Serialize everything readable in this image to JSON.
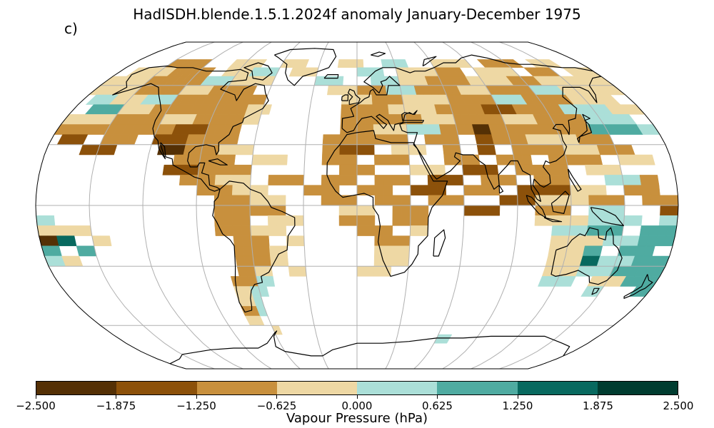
{
  "map": {
    "title": "HadISDH.blende.1.5.1.2024f anomaly January-December 1975",
    "panel_label": "c)",
    "projection": "Robinson",
    "basemap": "coastlines with 30-degree graticule",
    "missing_data_color": "#ffffff"
  },
  "colorbar": {
    "label": "Vapour Pressure (hPa)",
    "ticks": [
      "−2.500",
      "−1.875",
      "−1.250",
      "−0.625",
      "0.000",
      "0.625",
      "1.250",
      "1.875",
      "2.500"
    ],
    "range": [
      -2.5,
      2.5
    ],
    "colors": [
      "#543005",
      "#8c510a",
      "#c8903d",
      "#eed8a4",
      "#abdfd8",
      "#4faba1",
      "#08695f",
      "#003c30"
    ]
  },
  "field": {
    "rows_description": "Gridded 5-degree anomaly values, rows from north to south, each listing [start_longitude, end_longitude, class_index] runs (0=darkest brown ... 7=darkest teal).",
    "rows": [
      {
        "lat": 75,
        "runs": [
          [
            -150,
            -120,
            2
          ],
          [
            -100,
            -75,
            3
          ],
          [
            -60,
            -40,
            3
          ],
          [
            -15,
            5,
            3
          ],
          [
            20,
            40,
            4
          ],
          [
            60,
            90,
            3
          ],
          [
            100,
            130,
            2
          ],
          [
            140,
            160,
            3
          ]
        ]
      },
      {
        "lat": 70,
        "runs": [
          [
            -170,
            -140,
            3
          ],
          [
            -140,
            -110,
            2
          ],
          [
            -100,
            -80,
            3
          ],
          [
            -80,
            -60,
            4
          ],
          [
            -50,
            -30,
            3
          ],
          [
            0,
            20,
            4
          ],
          [
            30,
            60,
            3
          ],
          [
            60,
            80,
            2
          ],
          [
            90,
            120,
            3
          ],
          [
            130,
            150,
            2
          ],
          [
            160,
            180,
            3
          ]
        ]
      },
      {
        "lat": 65,
        "runs": [
          [
            -180,
            -150,
            3
          ],
          [
            -150,
            -110,
            2
          ],
          [
            -110,
            -90,
            4
          ],
          [
            -90,
            -60,
            3
          ],
          [
            -30,
            -10,
            4
          ],
          [
            10,
            30,
            4
          ],
          [
            30,
            50,
            3
          ],
          [
            50,
            80,
            2
          ],
          [
            80,
            110,
            3
          ],
          [
            110,
            130,
            2
          ],
          [
            130,
            160,
            3
          ],
          [
            160,
            180,
            3
          ]
        ]
      },
      {
        "lat": 60,
        "runs": [
          [
            -180,
            -150,
            3
          ],
          [
            -150,
            -120,
            2
          ],
          [
            -120,
            -100,
            3
          ],
          [
            -100,
            -70,
            2
          ],
          [
            -20,
            0,
            3
          ],
          [
            0,
            20,
            2
          ],
          [
            20,
            40,
            4
          ],
          [
            40,
            70,
            2
          ],
          [
            70,
            90,
            3
          ],
          [
            90,
            120,
            2
          ],
          [
            120,
            140,
            4
          ],
          [
            140,
            180,
            3
          ]
        ]
      },
      {
        "lat": 55,
        "runs": [
          [
            -175,
            -160,
            4
          ],
          [
            -160,
            -140,
            3
          ],
          [
            -140,
            -120,
            4
          ],
          [
            -120,
            -90,
            2
          ],
          [
            -90,
            -60,
            2
          ],
          [
            -10,
            10,
            3
          ],
          [
            10,
            30,
            2
          ],
          [
            30,
            60,
            3
          ],
          [
            60,
            90,
            2
          ],
          [
            90,
            110,
            4
          ],
          [
            110,
            140,
            2
          ],
          [
            140,
            170,
            3
          ]
        ]
      },
      {
        "lat": 50,
        "runs": [
          [
            -170,
            -150,
            5
          ],
          [
            -150,
            -130,
            3
          ],
          [
            -130,
            -100,
            2
          ],
          [
            -100,
            -70,
            2
          ],
          [
            -70,
            -55,
            3
          ],
          [
            -10,
            20,
            2
          ],
          [
            20,
            50,
            3
          ],
          [
            50,
            80,
            2
          ],
          [
            80,
            100,
            1
          ],
          [
            100,
            130,
            2
          ],
          [
            130,
            160,
            4
          ],
          [
            160,
            180,
            3
          ]
        ]
      },
      {
        "lat": 45,
        "runs": [
          [
            -180,
            -150,
            3
          ],
          [
            -150,
            -120,
            2
          ],
          [
            -120,
            -100,
            3
          ],
          [
            -100,
            -70,
            2
          ],
          [
            -70,
            -60,
            3
          ],
          [
            -10,
            10,
            2
          ],
          [
            10,
            40,
            2
          ],
          [
            40,
            60,
            3
          ],
          [
            60,
            90,
            2
          ],
          [
            90,
            110,
            3
          ],
          [
            110,
            140,
            2
          ],
          [
            140,
            170,
            4
          ]
        ]
      },
      {
        "lat": 40,
        "runs": [
          [
            -180,
            -160,
            2
          ],
          [
            -160,
            -130,
            2
          ],
          [
            -130,
            -110,
            2
          ],
          [
            -110,
            -90,
            1
          ],
          [
            -90,
            -70,
            2
          ],
          [
            -10,
            10,
            2
          ],
          [
            10,
            30,
            3
          ],
          [
            30,
            50,
            4
          ],
          [
            50,
            70,
            2
          ],
          [
            70,
            80,
            0
          ],
          [
            80,
            100,
            2
          ],
          [
            100,
            140,
            2
          ],
          [
            140,
            170,
            5
          ],
          [
            170,
            180,
            4
          ]
        ]
      },
      {
        "lat": 35,
        "runs": [
          [
            -175,
            -160,
            1
          ],
          [
            -150,
            -130,
            2
          ],
          [
            -120,
            -100,
            1
          ],
          [
            -100,
            -70,
            2
          ],
          [
            -20,
            0,
            2
          ],
          [
            0,
            30,
            2
          ],
          [
            40,
            60,
            2
          ],
          [
            70,
            80,
            1
          ],
          [
            80,
            100,
            2
          ],
          [
            100,
            130,
            3
          ],
          [
            130,
            150,
            2
          ]
        ]
      },
      {
        "lat": 30,
        "runs": [
          [
            -160,
            -140,
            1
          ],
          [
            -115,
            -100,
            0
          ],
          [
            -100,
            -80,
            2
          ],
          [
            -80,
            -60,
            3
          ],
          [
            -20,
            -10,
            2
          ],
          [
            -10,
            10,
            1
          ],
          [
            20,
            40,
            3
          ],
          [
            50,
            60,
            2
          ],
          [
            70,
            80,
            1
          ],
          [
            90,
            120,
            2
          ],
          [
            120,
            140,
            3
          ],
          [
            140,
            160,
            2
          ]
        ]
      },
      {
        "lat": 25,
        "runs": [
          [
            -105,
            -90,
            2
          ],
          [
            -90,
            -70,
            2
          ],
          [
            -60,
            -40,
            3
          ],
          [
            -20,
            0,
            2
          ],
          [
            10,
            30,
            2
          ],
          [
            50,
            70,
            2
          ],
          [
            80,
            100,
            2
          ],
          [
            110,
            140,
            2
          ],
          [
            150,
            170,
            3
          ]
        ]
      },
      {
        "lat": 20,
        "runs": [
          [
            -110,
            -90,
            1
          ],
          [
            -90,
            -60,
            2
          ],
          [
            -10,
            10,
            2
          ],
          [
            30,
            50,
            3
          ],
          [
            60,
            80,
            1
          ],
          [
            90,
            120,
            2
          ],
          [
            130,
            150,
            3
          ]
        ]
      },
      {
        "lat": 15,
        "runs": [
          [
            -100,
            -80,
            2
          ],
          [
            -80,
            -60,
            3
          ],
          [
            -50,
            -30,
            2
          ],
          [
            -20,
            0,
            2
          ],
          [
            10,
            30,
            2
          ],
          [
            40,
            60,
            1
          ],
          [
            70,
            90,
            2
          ],
          [
            100,
            120,
            2
          ],
          [
            140,
            160,
            4
          ],
          [
            160,
            170,
            2
          ]
        ]
      },
      {
        "lat": 10,
        "runs": [
          [
            -90,
            -70,
            2
          ],
          [
            -70,
            -50,
            3
          ],
          [
            -30,
            -10,
            2
          ],
          [
            0,
            20,
            2
          ],
          [
            30,
            50,
            1
          ],
          [
            60,
            80,
            2
          ],
          [
            90,
            120,
            1
          ],
          [
            120,
            140,
            3
          ],
          [
            150,
            170,
            2
          ]
        ]
      },
      {
        "lat": 5,
        "runs": [
          [
            -80,
            -60,
            2
          ],
          [
            -60,
            -40,
            3
          ],
          [
            -20,
            0,
            2
          ],
          [
            10,
            30,
            2
          ],
          [
            40,
            60,
            2
          ],
          [
            80,
            100,
            1
          ],
          [
            100,
            130,
            3
          ],
          [
            130,
            150,
            2
          ],
          [
            160,
            180,
            2
          ]
        ]
      },
      {
        "lat": 0,
        "runs": [
          [
            -80,
            -60,
            2
          ],
          [
            -60,
            -40,
            2
          ],
          [
            -10,
            10,
            3
          ],
          [
            20,
            40,
            2
          ],
          [
            60,
            80,
            1
          ],
          [
            100,
            120,
            2
          ],
          [
            130,
            150,
            4
          ],
          [
            170,
            180,
            1
          ]
        ]
      },
      {
        "lat": -5,
        "runs": [
          [
            -180,
            -170,
            4
          ],
          [
            -80,
            -60,
            2
          ],
          [
            -50,
            -30,
            3
          ],
          [
            -10,
            10,
            2
          ],
          [
            20,
            40,
            2
          ],
          [
            100,
            130,
            3
          ],
          [
            130,
            160,
            4
          ],
          [
            170,
            180,
            4
          ]
        ]
      },
      {
        "lat": -10,
        "runs": [
          [
            -180,
            -150,
            3
          ],
          [
            -80,
            -60,
            2
          ],
          [
            -60,
            -40,
            3
          ],
          [
            0,
            20,
            2
          ],
          [
            30,
            40,
            3
          ],
          [
            110,
            130,
            4
          ],
          [
            130,
            150,
            5
          ],
          [
            160,
            180,
            5
          ]
        ]
      },
      {
        "lat": -15,
        "runs": [
          [
            -180,
            -170,
            0
          ],
          [
            -170,
            -160,
            6
          ],
          [
            -150,
            -140,
            3
          ],
          [
            -70,
            -50,
            2
          ],
          [
            -40,
            -30,
            3
          ],
          [
            10,
            30,
            2
          ],
          [
            110,
            140,
            3
          ],
          [
            140,
            160,
            4
          ],
          [
            160,
            180,
            5
          ]
        ]
      },
      {
        "lat": -20,
        "runs": [
          [
            -180,
            -170,
            5
          ],
          [
            -160,
            -150,
            5
          ],
          [
            -70,
            -50,
            2
          ],
          [
            -50,
            -40,
            3
          ],
          [
            10,
            30,
            3
          ],
          [
            110,
            130,
            3
          ],
          [
            130,
            140,
            5
          ],
          [
            150,
            170,
            5
          ]
        ]
      },
      {
        "lat": -25,
        "runs": [
          [
            -180,
            -170,
            4
          ],
          [
            -170,
            -160,
            3
          ],
          [
            -70,
            -50,
            2
          ],
          [
            -50,
            -40,
            3
          ],
          [
            10,
            30,
            3
          ],
          [
            110,
            130,
            3
          ],
          [
            130,
            140,
            6
          ],
          [
            140,
            160,
            4
          ],
          [
            160,
            180,
            5
          ]
        ]
      },
      {
        "lat": -30,
        "runs": [
          [
            -70,
            -60,
            2
          ],
          [
            -60,
            -50,
            3
          ],
          [
            -40,
            -30,
            3
          ],
          [
            0,
            20,
            3
          ],
          [
            110,
            130,
            3
          ],
          [
            130,
            150,
            4
          ],
          [
            150,
            170,
            5
          ],
          [
            170,
            180,
            5
          ]
        ]
      },
      {
        "lat": -35,
        "runs": [
          [
            -75,
            -60,
            2
          ],
          [
            -60,
            -50,
            4
          ],
          [
            110,
            130,
            4
          ],
          [
            140,
            160,
            3
          ],
          [
            160,
            180,
            5
          ]
        ]
      },
      {
        "lat": -40,
        "runs": [
          [
            -75,
            -65,
            3
          ],
          [
            -65,
            -55,
            4
          ],
          [
            140,
            150,
            4
          ],
          [
            170,
            180,
            5
          ]
        ]
      },
      {
        "lat": -45,
        "runs": [
          [
            -75,
            -65,
            3
          ],
          [
            -65,
            -60,
            4
          ]
        ]
      },
      {
        "lat": -50,
        "runs": [
          [
            -75,
            -65,
            2
          ],
          [
            -65,
            -60,
            4
          ]
        ]
      },
      {
        "lat": -55,
        "runs": [
          [
            -75,
            -65,
            3
          ]
        ]
      },
      {
        "lat": -60,
        "runs": [
          [
            -60,
            -55,
            3
          ]
        ]
      },
      {
        "lat": -65,
        "runs": [
          [
            60,
            70,
            4
          ]
        ]
      }
    ]
  }
}
